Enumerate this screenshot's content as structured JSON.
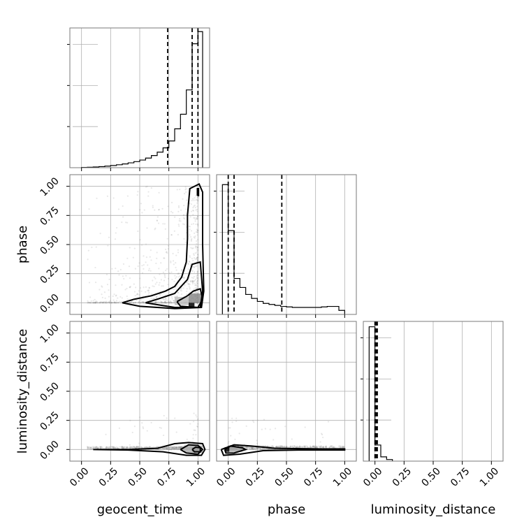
{
  "chart_data": {
    "type": "corner",
    "parameters": [
      "geocent_time",
      "phase",
      "luminosity_distance"
    ],
    "tick_values": [
      0.0,
      0.25,
      0.5,
      0.75,
      1.0
    ],
    "tick_labels": [
      "0.00",
      "0.25",
      "0.50",
      "0.75",
      "1.00"
    ],
    "axis_range": [
      -0.1,
      1.1
    ],
    "grid": true,
    "diagonal": [
      {
        "parameter": "geocent_time",
        "bin_edges": [
          0.0,
          0.05,
          0.1,
          0.15,
          0.2,
          0.25,
          0.3,
          0.35,
          0.4,
          0.45,
          0.5,
          0.55,
          0.6,
          0.65,
          0.7,
          0.75,
          0.8,
          0.85,
          0.9,
          0.95,
          1.0,
          1.04
        ],
        "counts": [
          0.2,
          0.4,
          0.6,
          0.9,
          1.3,
          1.8,
          2.4,
          3.1,
          4.0,
          5.0,
          6.3,
          7.9,
          10.0,
          12.8,
          16.3,
          22.0,
          32.0,
          44.0,
          64.0,
          102.0,
          112.0
        ],
        "ylim": [
          0,
          115
        ],
        "quantiles": [
          0.74,
          0.95,
          1.0
        ]
      },
      {
        "parameter": "phase",
        "bin_edges": [
          -0.05,
          0.0,
          0.05,
          0.1,
          0.15,
          0.2,
          0.25,
          0.3,
          0.35,
          0.4,
          0.45,
          0.5,
          0.55,
          0.6,
          0.65,
          0.7,
          0.75,
          0.8,
          0.85,
          0.9,
          0.95,
          1.0
        ],
        "counts": [
          130.0,
          84.0,
          36.0,
          27.0,
          20.0,
          16.0,
          13.0,
          11.0,
          10.0,
          9.0,
          8.0,
          7.5,
          7.0,
          7.0,
          7.0,
          7.0,
          7.0,
          7.5,
          8.0,
          8.0,
          4.0
        ],
        "ylim": [
          0,
          140
        ],
        "quantiles": [
          0.0,
          0.05,
          0.46
        ]
      },
      {
        "parameter": "luminosity_distance",
        "bin_edges": [
          -0.05,
          0.0,
          0.05,
          0.1,
          0.15
        ],
        "counts": [
          250.0,
          30.0,
          8.0,
          3.0
        ],
        "ylim": [
          0,
          260
        ],
        "quantiles": [
          0.0,
          0.01,
          0.02
        ]
      }
    ],
    "contour_levels": [
      {
        "x": "geocent_time",
        "y": "phase",
        "paths": [
          [
            [
              0.35,
              0.0
            ],
            [
              0.45,
              0.03
            ],
            [
              0.6,
              0.06
            ],
            [
              0.72,
              0.1
            ],
            [
              0.8,
              0.14
            ],
            [
              0.86,
              0.22
            ],
            [
              0.9,
              0.35
            ],
            [
              0.91,
              0.55
            ],
            [
              0.91,
              0.75
            ],
            [
              0.93,
              0.98
            ],
            [
              1.01,
              1.02
            ],
            [
              1.04,
              0.95
            ],
            [
              1.04,
              0.5
            ],
            [
              1.05,
              0.1
            ],
            [
              1.03,
              -0.04
            ],
            [
              0.8,
              -0.05
            ],
            [
              0.5,
              -0.03
            ],
            [
              0.35,
              0.0
            ]
          ],
          [
            [
              0.55,
              0.0
            ],
            [
              0.65,
              0.03
            ],
            [
              0.8,
              0.08
            ],
            [
              0.91,
              0.2
            ],
            [
              0.95,
              0.33
            ],
            [
              1.02,
              0.35
            ],
            [
              1.04,
              0.1
            ],
            [
              1.02,
              -0.04
            ],
            [
              0.8,
              -0.04
            ],
            [
              0.55,
              0.0
            ]
          ],
          [
            [
              0.82,
              0.01
            ],
            [
              0.91,
              0.06
            ],
            [
              0.96,
              0.1
            ],
            [
              1.02,
              0.12
            ],
            [
              1.04,
              0.03
            ],
            [
              1.0,
              -0.04
            ],
            [
              0.85,
              -0.03
            ],
            [
              0.82,
              0.01
            ]
          ],
          [
            [
              0.995,
              0.92
            ],
            [
              1.005,
              0.92
            ],
            [
              1.005,
              0.98
            ],
            [
              0.995,
              0.98
            ],
            [
              0.995,
              0.92
            ]
          ]
        ]
      },
      {
        "x": "geocent_time",
        "y": "luminosity_distance",
        "paths": [
          [
            [
              0.1,
              0.0
            ],
            [
              0.4,
              0.0
            ],
            [
              0.65,
              0.01
            ],
            [
              0.8,
              0.05
            ],
            [
              0.92,
              0.06
            ],
            [
              1.04,
              0.05
            ],
            [
              1.06,
              0.0
            ],
            [
              1.03,
              -0.05
            ],
            [
              0.9,
              -0.05
            ],
            [
              0.7,
              -0.02
            ],
            [
              0.4,
              -0.005
            ],
            [
              0.1,
              0.0
            ]
          ],
          [
            [
              0.85,
              0.0
            ],
            [
              0.92,
              0.04
            ],
            [
              1.0,
              0.035
            ],
            [
              1.04,
              0.0
            ],
            [
              1.0,
              -0.04
            ],
            [
              0.9,
              -0.03
            ],
            [
              0.85,
              0.0
            ]
          ],
          [
            [
              0.95,
              0.0
            ],
            [
              0.98,
              0.02
            ],
            [
              1.02,
              0.015
            ],
            [
              1.02,
              -0.02
            ],
            [
              0.97,
              -0.02
            ],
            [
              0.95,
              0.0
            ]
          ]
        ]
      },
      {
        "x": "phase",
        "y": "luminosity_distance",
        "paths": [
          [
            [
              -0.06,
              0.0
            ],
            [
              0.05,
              0.04
            ],
            [
              0.2,
              0.03
            ],
            [
              0.4,
              0.01
            ],
            [
              0.8,
              0.005
            ],
            [
              1.0,
              0.005
            ],
            [
              1.0,
              -0.005
            ],
            [
              0.6,
              -0.005
            ],
            [
              0.3,
              -0.01
            ],
            [
              0.1,
              -0.04
            ],
            [
              -0.04,
              -0.05
            ],
            [
              -0.06,
              0.0
            ]
          ],
          [
            [
              -0.03,
              0.0
            ],
            [
              0.02,
              0.03
            ],
            [
              0.12,
              0.015
            ],
            [
              0.15,
              0.0
            ],
            [
              0.05,
              -0.03
            ],
            [
              -0.02,
              -0.03
            ],
            [
              -0.03,
              0.0
            ]
          ]
        ]
      }
    ],
    "density_cells": [
      {
        "x": "geocent_time",
        "y": "phase",
        "x0": 0.92,
        "x1": 0.97,
        "y0": -0.04,
        "y1": 0.0,
        "level": 1.0
      },
      {
        "x": "geocent_time",
        "y": "phase",
        "x0": 0.92,
        "x1": 1.04,
        "y0": 0.0,
        "y1": 0.08,
        "level": 0.45
      },
      {
        "x": "geocent_time",
        "y": "phase",
        "x0": 0.8,
        "x1": 0.92,
        "y0": -0.02,
        "y1": 0.05,
        "level": 0.25
      },
      {
        "x": "geocent_time",
        "y": "luminosity_distance",
        "x0": 0.95,
        "x1": 1.02,
        "y0": -0.02,
        "y1": 0.02,
        "level": 0.9
      },
      {
        "x": "geocent_time",
        "y": "luminosity_distance",
        "x0": 0.88,
        "x1": 1.04,
        "y0": -0.03,
        "y1": 0.035,
        "level": 0.3
      },
      {
        "x": "phase",
        "y": "luminosity_distance",
        "x0": -0.03,
        "x1": 0.01,
        "y0": -0.02,
        "y1": 0.02,
        "level": 1.0
      },
      {
        "x": "phase",
        "y": "luminosity_distance",
        "x0": 0.01,
        "x1": 0.12,
        "y0": -0.02,
        "y1": 0.02,
        "level": 0.35
      },
      {
        "x": "phase",
        "y": "luminosity_distance",
        "x0": 0.9,
        "x1": 1.0,
        "y0": -0.005,
        "y1": 0.008,
        "level": 0.8
      }
    ]
  }
}
